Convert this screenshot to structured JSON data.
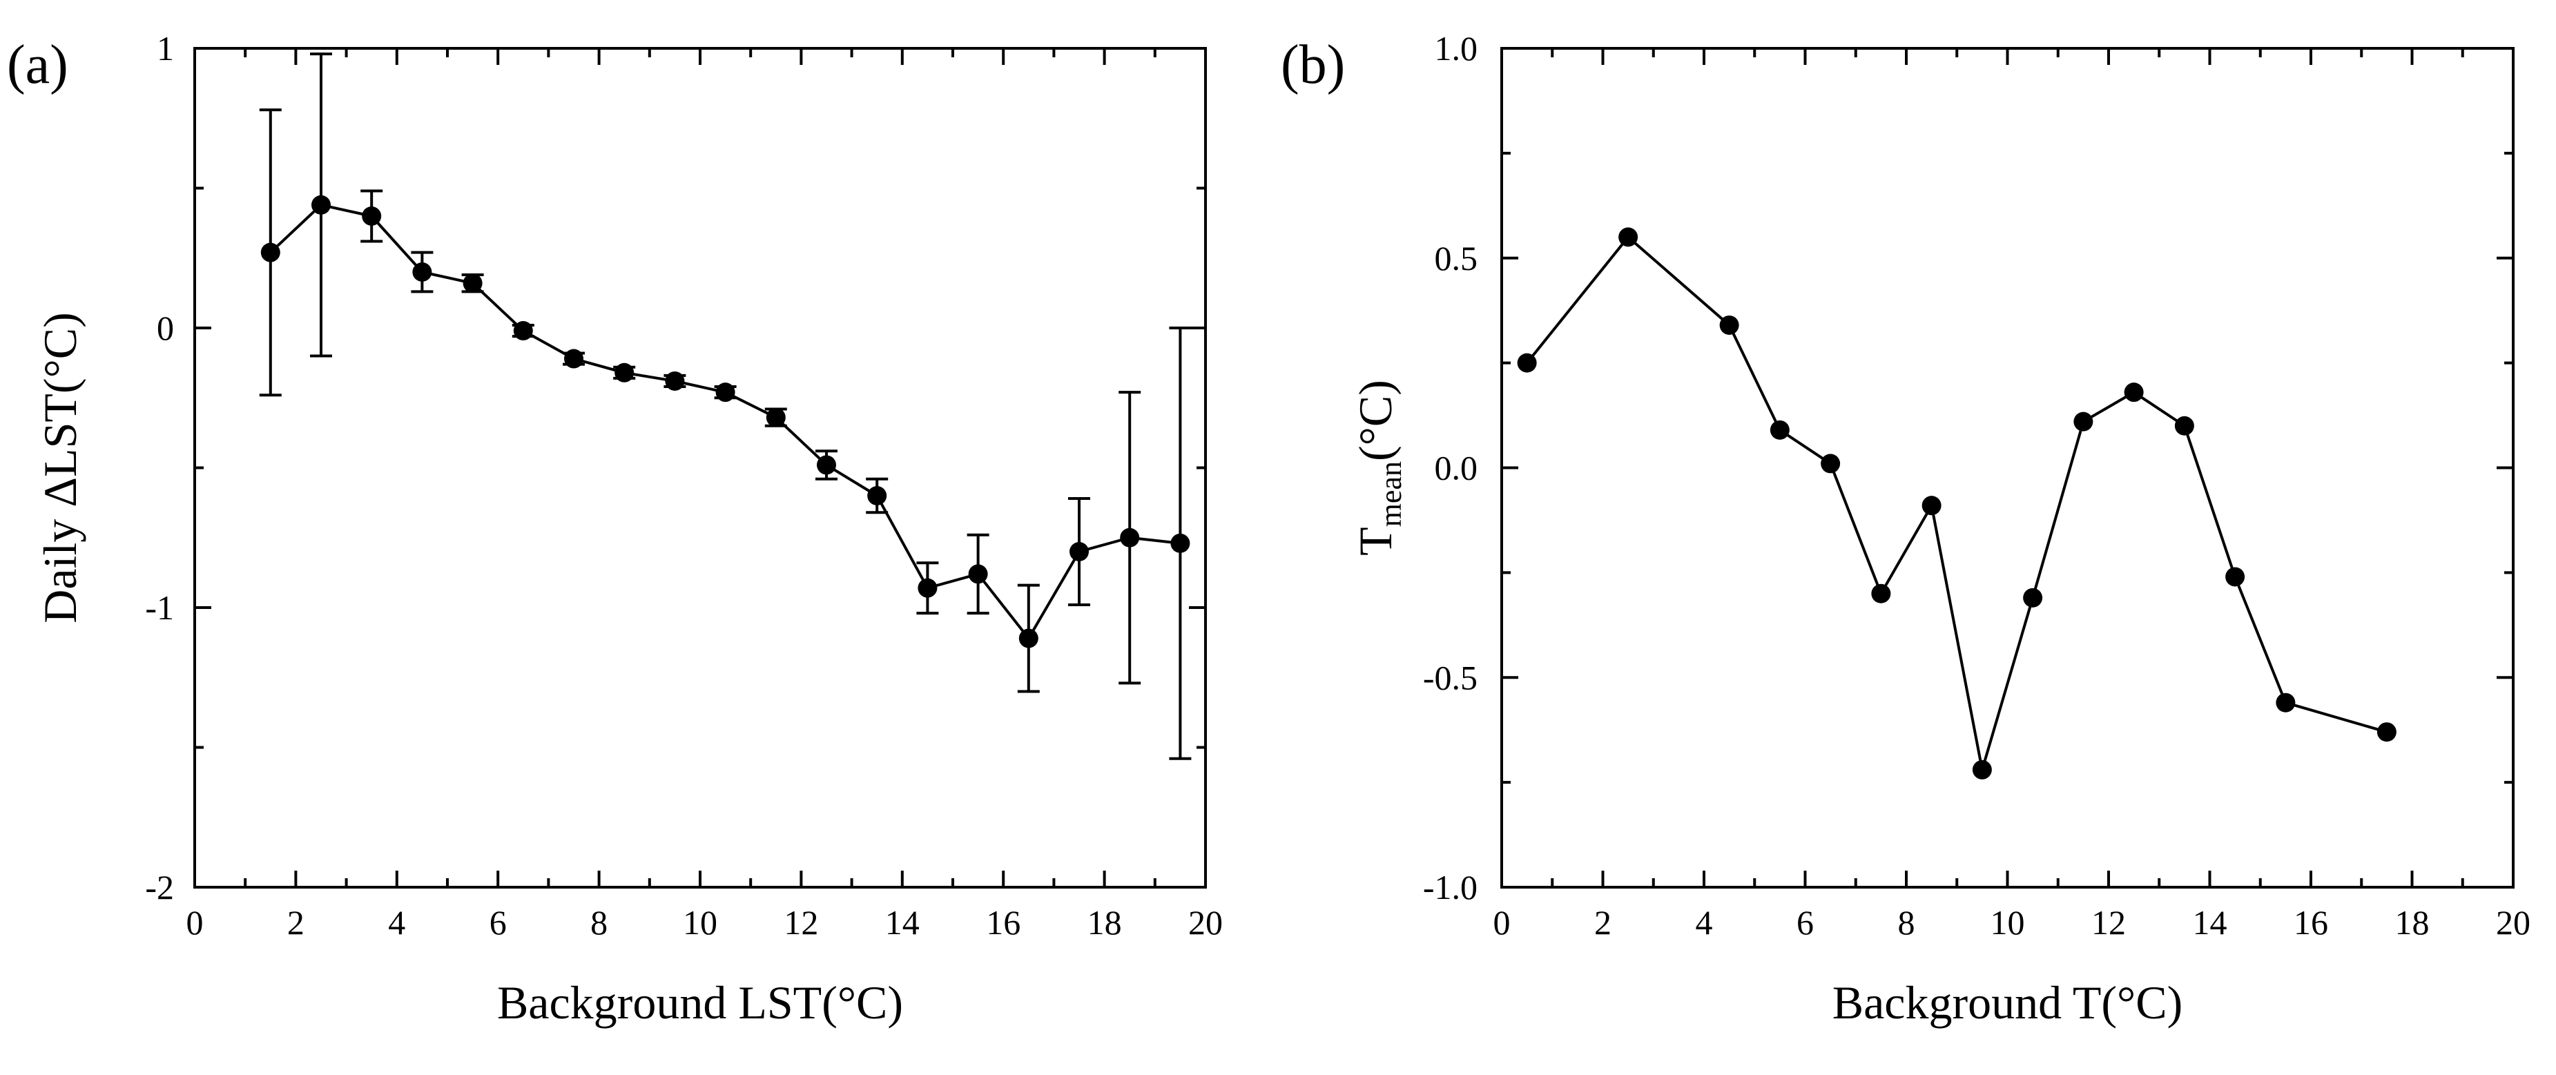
{
  "chart_data": [
    {
      "type": "line",
      "panel_label": "(a)",
      "title": "",
      "xlabel": "Background LST(°C)",
      "ylabel": "Daily ΔLST(°C)",
      "xlim": [
        0,
        20
      ],
      "ylim": [
        -2,
        1
      ],
      "xticks": [
        0,
        2,
        4,
        6,
        8,
        10,
        12,
        14,
        16,
        18,
        20
      ],
      "xtick_labels": [
        "0",
        "2",
        "4",
        "6",
        "8",
        "10",
        "12",
        "14",
        "16",
        "18",
        "20"
      ],
      "yticks": [
        -2,
        -1,
        0,
        1
      ],
      "ytick_labels": [
        "-2",
        "-1",
        "0",
        "1"
      ],
      "grid": false,
      "legend": "none",
      "x": [
        1.5,
        2.5,
        3.5,
        4.5,
        5.5,
        6.5,
        7.5,
        8.5,
        9.5,
        10.5,
        11.5,
        12.5,
        13.5,
        14.5,
        15.5,
        16.5,
        17.5,
        18.5,
        19.5
      ],
      "y": [
        0.27,
        0.44,
        0.4,
        0.2,
        0.16,
        -0.01,
        -0.11,
        -0.16,
        -0.19,
        -0.23,
        -0.32,
        -0.49,
        -0.6,
        -0.93,
        -0.88,
        -1.11,
        -0.8,
        -0.75,
        -0.77
      ],
      "error": [
        0.51,
        0.54,
        0.09,
        0.07,
        0.03,
        0.02,
        0.02,
        0.02,
        0.02,
        0.02,
        0.03,
        0.05,
        0.06,
        0.09,
        0.14,
        0.19,
        0.19,
        0.52,
        0.77
      ]
    },
    {
      "type": "line",
      "panel_label": "(b)",
      "title": "",
      "xlabel": "Background T(°C)",
      "ylabel_main": "T",
      "ylabel_sub": "mean",
      "ylabel_tail": "(°C)",
      "xlim": [
        0,
        20
      ],
      "ylim": [
        -1.0,
        1.0
      ],
      "xticks": [
        0,
        2,
        4,
        6,
        8,
        10,
        12,
        14,
        16,
        18,
        20
      ],
      "xtick_labels": [
        "0",
        "2",
        "4",
        "6",
        "8",
        "10",
        "12",
        "14",
        "16",
        "18",
        "20"
      ],
      "yticks": [
        -1.0,
        -0.5,
        0.0,
        0.5,
        1.0
      ],
      "ytick_labels": [
        "-1.0",
        "-0.5",
        "0.0",
        "0.5",
        "1.0"
      ],
      "grid": false,
      "legend": "none",
      "x": [
        0.5,
        2.5,
        4.5,
        5.5,
        6.5,
        7.5,
        8.5,
        9.5,
        10.5,
        11.5,
        12.5,
        13.5,
        14.5,
        15.5,
        17.5
      ],
      "y": [
        0.25,
        0.55,
        0.34,
        0.09,
        0.01,
        -0.3,
        -0.09,
        -0.72,
        -0.31,
        0.11,
        0.18,
        0.1,
        -0.26,
        -0.56,
        -0.63
      ]
    }
  ]
}
